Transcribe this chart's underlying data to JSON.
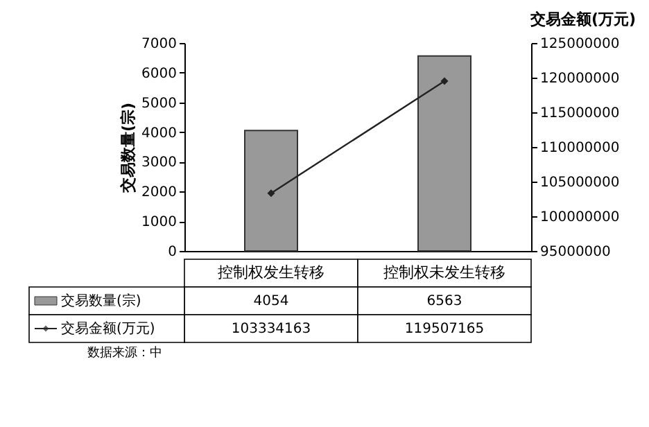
{
  "chart_data": {
    "type": "bar",
    "categories": [
      "控制权发生转移",
      "控制权未发生转移"
    ],
    "series": [
      {
        "name": "交易数量(宗)",
        "color": "#999999",
        "values": [
          4054,
          6563
        ]
      },
      {
        "name": "交易金额(万元)",
        "type": "line",
        "axis": "y2",
        "color": "#222222",
        "marker": "diamond",
        "line_style": "solid",
        "values": [
          103334163,
          119507165
        ]
      }
    ],
    "ylabel": "交易数量(宗)",
    "y2label": "交易金额(万元)",
    "ylim": [
      0,
      7000
    ],
    "yticks": [
      0,
      1000,
      2000,
      3000,
      4000,
      5000,
      6000,
      7000
    ],
    "y2lim": [
      95000000,
      125000000
    ],
    "y2ticks": [
      95000000,
      100000000,
      105000000,
      110000000,
      115000000,
      120000000,
      125000000
    ],
    "grid": false,
    "legend": "bottom",
    "data_labels": true,
    "annotations": [
      "数据来源：中"
    ]
  }
}
